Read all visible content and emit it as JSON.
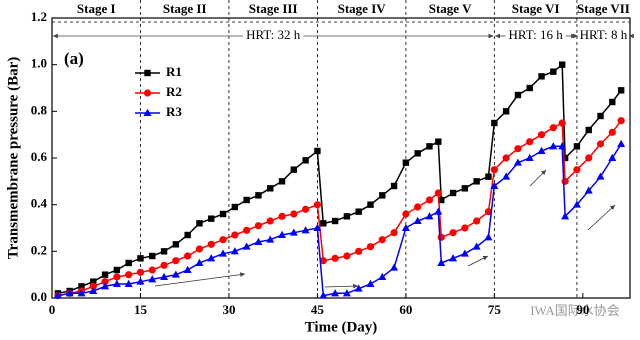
{
  "chart_data": {
    "type": "line",
    "panel_label": "(a)",
    "x_label": "Time (Day)",
    "y_label": "Transmembrane pressure (Bar)",
    "xlim": [
      0,
      98
    ],
    "ylim": [
      0,
      1.2
    ],
    "xticks": [
      0,
      15,
      30,
      45,
      60,
      75,
      90
    ],
    "yticks": [
      {
        "value": 0,
        "label": "0.0"
      },
      0.2,
      0.4,
      0.6,
      0.8,
      {
        "value": 1,
        "label": "1.0"
      },
      1.2
    ],
    "legend": "upper-left",
    "stages": [
      {
        "label": "Stage I",
        "range": [
          0,
          15
        ]
      },
      {
        "label": "Stage II",
        "range": [
          15,
          30
        ]
      },
      {
        "label": "Stage III",
        "range": [
          30,
          45
        ]
      },
      {
        "label": "Stage IV",
        "range": [
          45,
          60
        ]
      },
      {
        "label": "Stage V",
        "range": [
          60,
          75
        ]
      },
      {
        "label": "Stage VI",
        "range": [
          75,
          89
        ]
      },
      {
        "label": "Stage VII",
        "range": [
          89,
          98
        ]
      }
    ],
    "hrt": [
      {
        "label": "HRT: 32 h",
        "range": [
          0,
          75
        ]
      },
      {
        "label": "HRT: 16 h",
        "range": [
          75,
          89
        ]
      },
      {
        "label": "HRT: 8 h",
        "range": [
          89,
          98
        ]
      }
    ],
    "watermark": "IWA国际水协会",
    "x": [
      1,
      3,
      5,
      7,
      9,
      11,
      13,
      15,
      17,
      19,
      21,
      23,
      25,
      27,
      29,
      31,
      33,
      35,
      37,
      39,
      41,
      43,
      45,
      46,
      48,
      50,
      52,
      54,
      56,
      58,
      60,
      62,
      64,
      65.5,
      66,
      68,
      70,
      72,
      74,
      75,
      77,
      79,
      81,
      83,
      85,
      86.5,
      87,
      89,
      91,
      93,
      95,
      96.5
    ],
    "series": [
      {
        "name": "R1",
        "color": "#000000",
        "marker": "square",
        "values": [
          0.02,
          0.03,
          0.05,
          0.07,
          0.1,
          0.12,
          0.15,
          0.17,
          0.18,
          0.2,
          0.23,
          0.27,
          0.32,
          0.34,
          0.36,
          0.39,
          0.42,
          0.44,
          0.47,
          0.5,
          0.55,
          0.59,
          0.63,
          0.32,
          0.33,
          0.35,
          0.37,
          0.4,
          0.44,
          0.48,
          0.58,
          0.62,
          0.65,
          0.67,
          0.42,
          0.45,
          0.47,
          0.5,
          0.52,
          0.75,
          0.8,
          0.87,
          0.9,
          0.95,
          0.97,
          1.0,
          0.6,
          0.65,
          0.72,
          0.78,
          0.84,
          0.89
        ]
      },
      {
        "name": "R2",
        "color": "#ff0000",
        "marker": "circle",
        "values": [
          0.01,
          0.02,
          0.03,
          0.05,
          0.07,
          0.09,
          0.1,
          0.11,
          0.12,
          0.14,
          0.16,
          0.18,
          0.21,
          0.23,
          0.25,
          0.27,
          0.29,
          0.31,
          0.33,
          0.35,
          0.36,
          0.38,
          0.4,
          0.16,
          0.17,
          0.18,
          0.2,
          0.22,
          0.25,
          0.28,
          0.36,
          0.39,
          0.42,
          0.45,
          0.26,
          0.28,
          0.3,
          0.33,
          0.37,
          0.55,
          0.6,
          0.64,
          0.67,
          0.7,
          0.73,
          0.75,
          0.5,
          0.55,
          0.6,
          0.66,
          0.71,
          0.76
        ]
      },
      {
        "name": "R3",
        "color": "#0000ff",
        "marker": "triangle",
        "values": [
          0.01,
          0.02,
          0.02,
          0.03,
          0.05,
          0.06,
          0.06,
          0.07,
          0.08,
          0.09,
          0.1,
          0.12,
          0.15,
          0.17,
          0.19,
          0.2,
          0.22,
          0.24,
          0.25,
          0.27,
          0.28,
          0.29,
          0.3,
          0.01,
          0.02,
          0.02,
          0.04,
          0.06,
          0.09,
          0.13,
          0.3,
          0.33,
          0.35,
          0.37,
          0.15,
          0.17,
          0.19,
          0.22,
          0.26,
          0.48,
          0.52,
          0.58,
          0.6,
          0.63,
          0.65,
          0.65,
          0.35,
          0.4,
          0.46,
          0.52,
          0.6,
          0.66
        ]
      }
    ]
  }
}
